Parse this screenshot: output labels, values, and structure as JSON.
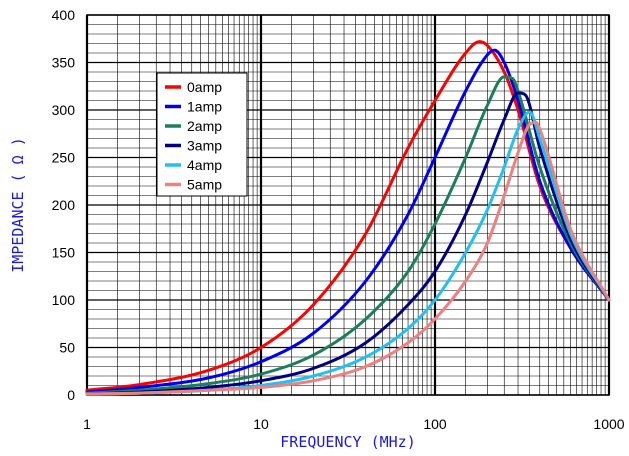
{
  "chart_data": {
    "type": "line",
    "xlabel": "FREQUENCY (MHz)",
    "ylabel": "IMPEDANCE ( Ω )",
    "x_scale": "log",
    "xlim": [
      1,
      1000
    ],
    "ylim": [
      0,
      400
    ],
    "x_ticks": [
      1,
      10,
      100,
      1000
    ],
    "y_ticks": [
      0,
      50,
      100,
      150,
      200,
      250,
      300,
      350,
      400
    ],
    "grid": true,
    "legend_position": "upper-left",
    "series": [
      {
        "name": "0amp",
        "color": "#ff0000",
        "x": [
          1,
          2,
          5,
          10,
          20,
          40,
          70,
          100,
          150,
          180,
          200,
          250,
          300,
          400,
          600,
          1000
        ],
        "y": [
          5,
          11,
          26,
          50,
          95,
          170,
          260,
          310,
          360,
          372,
          368,
          340,
          300,
          220,
          155,
          100
        ]
      },
      {
        "name": "1amp",
        "color": "#0000ee",
        "x": [
          1,
          2,
          5,
          10,
          20,
          40,
          70,
          100,
          150,
          200,
          220,
          250,
          300,
          400,
          600,
          1000
        ],
        "y": [
          3,
          8,
          18,
          35,
          65,
          120,
          190,
          250,
          320,
          358,
          363,
          350,
          310,
          225,
          155,
          100
        ]
      },
      {
        "name": "2amp",
        "color": "#1a7f5a",
        "x": [
          1,
          2,
          5,
          10,
          20,
          40,
          70,
          100,
          150,
          200,
          250,
          280,
          300,
          400,
          600,
          1000
        ],
        "y": [
          2,
          5,
          12,
          22,
          42,
          80,
          130,
          180,
          250,
          305,
          335,
          333,
          320,
          240,
          160,
          100
        ]
      },
      {
        "name": "3amp",
        "color": "#000080",
        "x": [
          1,
          2,
          5,
          10,
          20,
          40,
          70,
          100,
          150,
          200,
          250,
          300,
          330,
          400,
          600,
          1000
        ],
        "y": [
          1,
          3,
          8,
          15,
          28,
          55,
          95,
          130,
          190,
          245,
          290,
          318,
          316,
          260,
          165,
          100
        ]
      },
      {
        "name": "4amp",
        "color": "#20c0f0",
        "x": [
          1,
          2,
          5,
          10,
          20,
          40,
          70,
          100,
          150,
          200,
          250,
          300,
          350,
          400,
          600,
          1000
        ],
        "y": [
          1,
          2,
          5,
          10,
          20,
          40,
          70,
          100,
          150,
          195,
          240,
          280,
          298,
          270,
          170,
          100
        ]
      },
      {
        "name": "5amp",
        "color": "#f08080",
        "x": [
          1,
          2,
          5,
          10,
          20,
          40,
          70,
          100,
          150,
          200,
          250,
          300,
          350,
          380,
          400,
          600,
          1000
        ],
        "y": [
          1,
          2,
          5,
          8,
          15,
          30,
          55,
          80,
          120,
          160,
          210,
          255,
          285,
          287,
          280,
          175,
          100
        ]
      }
    ]
  }
}
